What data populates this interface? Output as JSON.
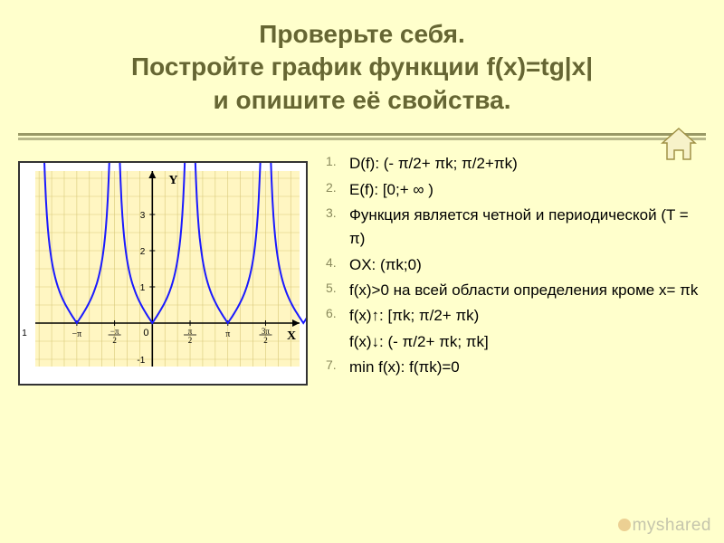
{
  "title_lines": [
    "Проверьте себя.",
    "Постройте график функции f(x)=tg|x|",
    "и опишите её свойства."
  ],
  "properties": {
    "items": [
      "D(f): (- π/2+ πk; π/2+πk)",
      "E(f): [0;+ ∞ )",
      "Функция является четной и периодической (T = π)",
      "OX: (πk;0)",
      "f(x)>0 на всей области определения кроме x= πk",
      "f(x)↑: [πk; π/2+ πk)",
      "min f(x): f(πk)=0"
    ],
    "sub_after_6": "f(x)↓: (- π/2+ πk; πk]"
  },
  "chart": {
    "type": "line",
    "bg_outer": "#ffffff",
    "plot_bg": "#fff6c2",
    "grid_color": "#d9c97a",
    "axis_color": "#000000",
    "curve_color": "#1a1aff",
    "curve_width": 2,
    "x_range_pi": [
      -1.55,
      1.95
    ],
    "y_range": [
      -1.2,
      4.2
    ],
    "x_ticks": [
      {
        "v": -3.1416,
        "label": "-π"
      },
      {
        "v": -1.5708,
        "label": "-π/2"
      },
      {
        "v": 1.5708,
        "label": "π/2"
      },
      {
        "v": 3.1416,
        "label": "π"
      },
      {
        "v": 4.7124,
        "label": "3π/2"
      }
    ],
    "y_ticks": [
      1,
      2,
      3
    ],
    "axis_labels": {
      "x": "X",
      "y": "Y"
    },
    "period": 3.14159,
    "branches_center_pi": [
      -1,
      0,
      1,
      2
    ]
  },
  "colors": {
    "slide_bg": "#ffffcc",
    "title_color": "#666633",
    "divider_color": "#999966",
    "list_number_color": "#8a8a5c"
  },
  "watermark": "myshared",
  "home_icon": {
    "stroke": "#a09246",
    "fill": "#f7f2c9"
  }
}
